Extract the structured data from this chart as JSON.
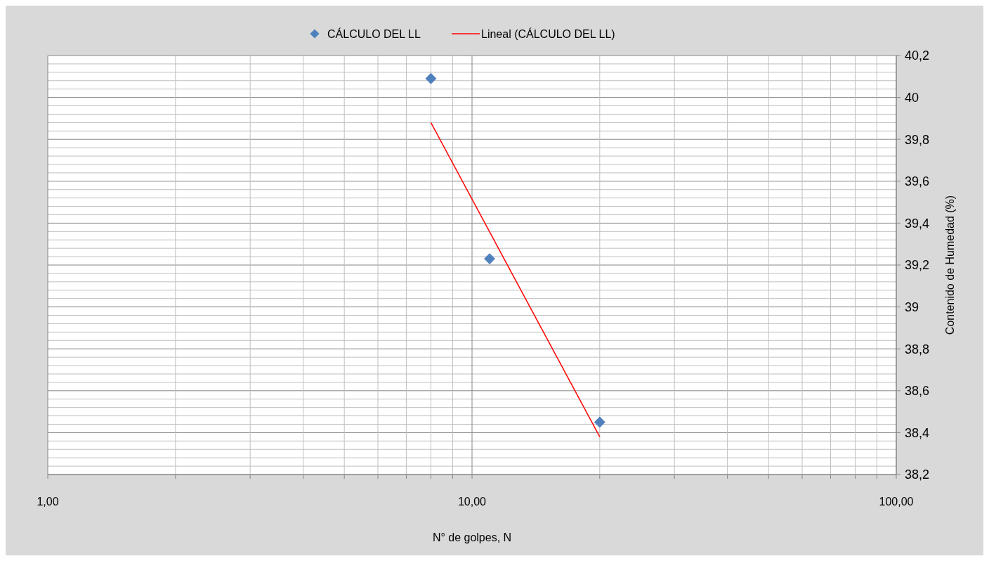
{
  "chart_data": {
    "type": "scatter",
    "log": "x",
    "grid": true,
    "legend": "top",
    "marker": "diamond",
    "xlabel": "N° de golpes, N",
    "ylabel": "Contenido de Humedad (%)",
    "xlim": [
      1,
      100
    ],
    "ylim": [
      38.2,
      40.2
    ],
    "xticks": [
      {
        "value": 1,
        "label": "1,00"
      },
      {
        "value": 2,
        "label": null
      },
      {
        "value": 3,
        "label": null
      },
      {
        "value": 4,
        "label": null
      },
      {
        "value": 5,
        "label": null
      },
      {
        "value": 6,
        "label": null
      },
      {
        "value": 7,
        "label": null
      },
      {
        "value": 8,
        "label": null
      },
      {
        "value": 9,
        "label": null
      },
      {
        "value": 10,
        "label": "10,00"
      },
      {
        "value": 20,
        "label": null
      },
      {
        "value": 30,
        "label": null
      },
      {
        "value": 40,
        "label": null
      },
      {
        "value": 50,
        "label": null
      },
      {
        "value": 60,
        "label": null
      },
      {
        "value": 70,
        "label": null
      },
      {
        "value": 80,
        "label": null
      },
      {
        "value": 90,
        "label": null
      },
      {
        "value": 100,
        "label": "100,00"
      }
    ],
    "yticks": [
      {
        "value": 38.2,
        "label": "38,2"
      },
      {
        "value": 38.24,
        "label": null
      },
      {
        "value": 38.28,
        "label": null
      },
      {
        "value": 38.32,
        "label": null
      },
      {
        "value": 38.36,
        "label": null
      },
      {
        "value": 38.4,
        "label": "38,4"
      },
      {
        "value": 38.44,
        "label": null
      },
      {
        "value": 38.48,
        "label": null
      },
      {
        "value": 38.52,
        "label": null
      },
      {
        "value": 38.56,
        "label": null
      },
      {
        "value": 38.6,
        "label": "38,6"
      },
      {
        "value": 38.64,
        "label": null
      },
      {
        "value": 38.68,
        "label": null
      },
      {
        "value": 38.72,
        "label": null
      },
      {
        "value": 38.76,
        "label": null
      },
      {
        "value": 38.8,
        "label": "38,8"
      },
      {
        "value": 38.84,
        "label": null
      },
      {
        "value": 38.88,
        "label": null
      },
      {
        "value": 38.92,
        "label": null
      },
      {
        "value": 38.96,
        "label": null
      },
      {
        "value": 39,
        "label": "39"
      },
      {
        "value": 39.04,
        "label": null
      },
      {
        "value": 39.08,
        "label": null
      },
      {
        "value": 39.12,
        "label": null
      },
      {
        "value": 39.16,
        "label": null
      },
      {
        "value": 39.2,
        "label": "39,2"
      },
      {
        "value": 39.24,
        "label": null
      },
      {
        "value": 39.28,
        "label": null
      },
      {
        "value": 39.32,
        "label": null
      },
      {
        "value": 39.36,
        "label": null
      },
      {
        "value": 39.4,
        "label": "39,4"
      },
      {
        "value": 39.44,
        "label": null
      },
      {
        "value": 39.48,
        "label": null
      },
      {
        "value": 39.52,
        "label": null
      },
      {
        "value": 39.56,
        "label": null
      },
      {
        "value": 39.6,
        "label": "39,6"
      },
      {
        "value": 39.64,
        "label": null
      },
      {
        "value": 39.68,
        "label": null
      },
      {
        "value": 39.72,
        "label": null
      },
      {
        "value": 39.76,
        "label": null
      },
      {
        "value": 39.8,
        "label": "39,8"
      },
      {
        "value": 39.84,
        "label": null
      },
      {
        "value": 39.88,
        "label": null
      },
      {
        "value": 39.92,
        "label": null
      },
      {
        "value": 39.96,
        "label": null
      },
      {
        "value": 40,
        "label": "40"
      },
      {
        "value": 40.04,
        "label": null
      },
      {
        "value": 40.08,
        "label": null
      },
      {
        "value": 40.12,
        "label": null
      },
      {
        "value": 40.16,
        "label": null
      },
      {
        "value": 40.2,
        "label": "40,2"
      }
    ],
    "series": [
      {
        "name": "CÁLCULO DEL LL",
        "color": "#4f81bd",
        "x": [
          8,
          11,
          20
        ],
        "values": [
          40.09,
          39.23,
          38.45
        ]
      },
      {
        "name": "Lineal (CÁLCULO DEL LL)",
        "type": "line",
        "color": "#ff0000",
        "marker": "none",
        "x": [
          8,
          20
        ],
        "values": [
          39.88,
          38.38
        ]
      }
    ]
  }
}
